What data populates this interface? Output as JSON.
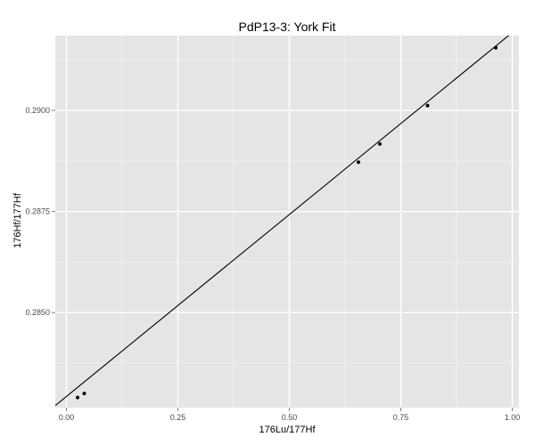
{
  "chart_data": {
    "type": "scatter",
    "title": "PdP13-3: York Fit",
    "xlabel": "176Lu/177Hf",
    "ylabel": "176Hf/177Hf",
    "xlim": [
      -0.025,
      1.015
    ],
    "ylim": [
      0.28265,
      0.29185
    ],
    "x_ticks": [
      0.0,
      0.25,
      0.5,
      0.75,
      1.0
    ],
    "x_tick_labels": [
      "0.00",
      "0.25",
      "0.50",
      "0.75",
      "1.00"
    ],
    "y_ticks": [
      0.285,
      0.2875,
      0.29
    ],
    "y_tick_labels": [
      "0.2850",
      "0.2875",
      "0.2900"
    ],
    "grid": true,
    "colors": {
      "panel": "#e5e5e5",
      "grid_major": "#ffffff",
      "grid_minor": "#f2f2f2",
      "points": "#000000",
      "fit_line": "#000000"
    },
    "series": [
      {
        "values": [
          {
            "x": 0.025,
            "y": 0.2829
          },
          {
            "x": 0.04,
            "y": 0.283
          },
          {
            "x": 0.655,
            "y": 0.28872
          },
          {
            "x": 0.703,
            "y": 0.28917
          },
          {
            "x": 0.81,
            "y": 0.29012
          },
          {
            "x": 0.963,
            "y": 0.29155
          }
        ]
      }
    ],
    "fit_line": {
      "x": [
        -0.025,
        1.015
      ],
      "y": [
        0.2827,
        0.29206
      ]
    }
  }
}
